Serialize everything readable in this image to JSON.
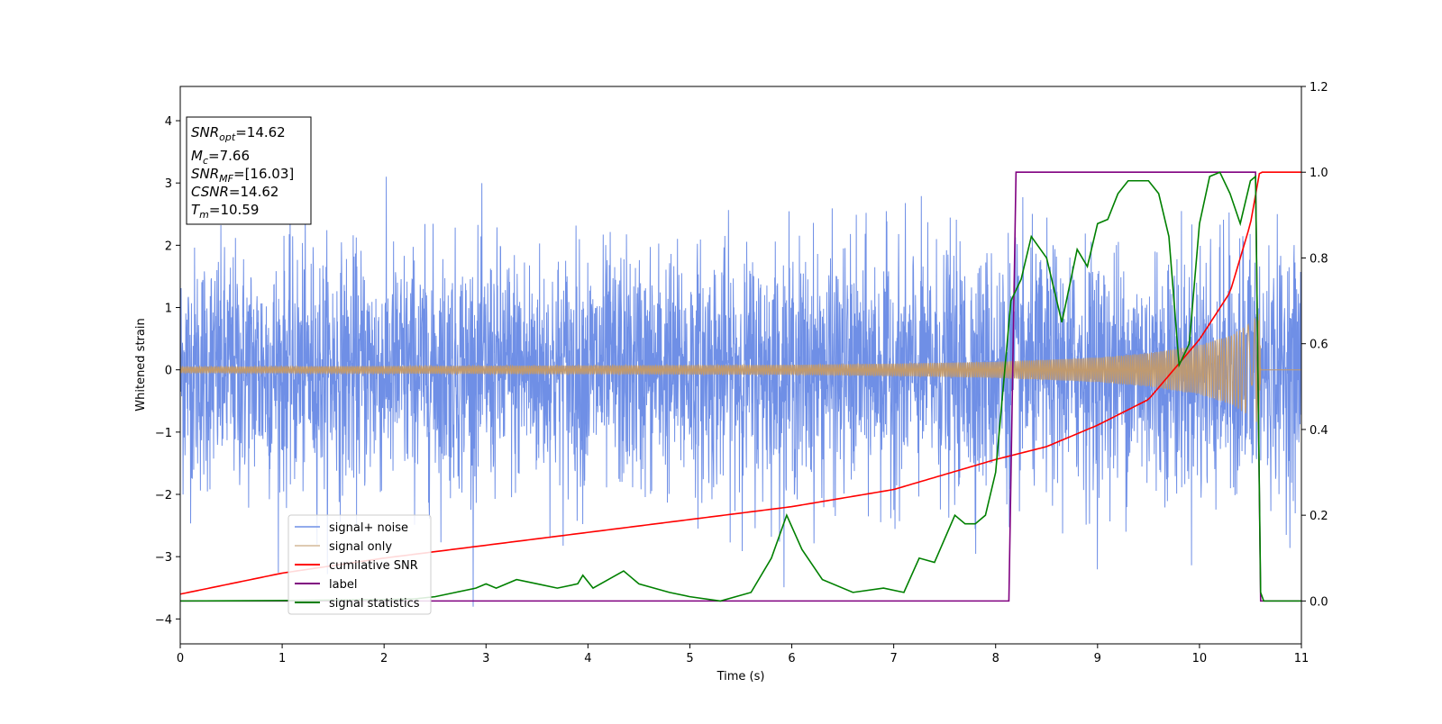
{
  "chart_data": {
    "type": "line",
    "xlabel": "Time (s)",
    "ylabel": "Whitened strain",
    "xlim": [
      0,
      11
    ],
    "ylim": [
      -4.4,
      4.55
    ],
    "y2lim": [
      -0.1,
      1.2
    ],
    "x_ticks": [
      "0",
      "1",
      "2",
      "3",
      "4",
      "5",
      "6",
      "7",
      "8",
      "9",
      "10",
      "11"
    ],
    "y_ticks": [
      "4",
      "3",
      "2",
      "1",
      "0",
      "−1",
      "−2",
      "−3",
      "−4"
    ],
    "y2_ticks": [
      "1.2",
      "1.0",
      "0.8",
      "0.6",
      "0.4",
      "0.2",
      "0.0"
    ],
    "grid": false,
    "legend": {
      "position": "lower-left",
      "entries": [
        "signal+ noise",
        "signal only",
        "cumilative SNR",
        "label",
        "signal statistics"
      ]
    },
    "annotation_box": [
      {
        "sym": "SNR",
        "sub": "opt",
        "val": "=14.62"
      },
      {
        "sym": "M",
        "sub": "c",
        "val": "=7.66"
      },
      {
        "sym": "SNR",
        "sub": "MF",
        "val": "=[16.03]"
      },
      {
        "sym": "CSNR",
        "sub": "",
        "val": "=14.62"
      },
      {
        "sym": "T",
        "sub": "m",
        "val": "=10.59"
      }
    ],
    "series": [
      {
        "name": "signal+ noise",
        "axis": "left",
        "color": "#6f8fe6",
        "description_stats": {
          "mean": 0,
          "std": 1.0,
          "min": -3.94,
          "max": 4.18
        }
      },
      {
        "name": "signal only",
        "axis": "left",
        "color": "#c29a6c",
        "envelope": {
          "x": [
            0,
            2,
            4,
            6,
            7,
            8,
            9,
            9.5,
            10,
            10.3,
            10.5,
            10.59,
            10.6,
            11
          ],
          "amp": [
            0.05,
            0.06,
            0.07,
            0.08,
            0.1,
            0.13,
            0.2,
            0.27,
            0.4,
            0.55,
            0.75,
            0.92,
            0.0,
            0.0
          ]
        }
      },
      {
        "name": "cumilative SNR",
        "axis": "right",
        "color": "#ff0000",
        "x": [
          0,
          1,
          2,
          3,
          4,
          5,
          6,
          7,
          8,
          8.5,
          9,
          9.5,
          10,
          10.3,
          10.5,
          10.59,
          10.6,
          11
        ],
        "values": [
          0.016,
          0.065,
          0.1,
          0.13,
          0.16,
          0.19,
          0.22,
          0.26,
          0.33,
          0.36,
          0.41,
          0.47,
          0.61,
          0.72,
          0.88,
          1.0,
          1.0,
          1.0
        ]
      },
      {
        "name": "label",
        "axis": "right",
        "color": "#800080",
        "x": [
          0,
          8.13,
          8.2,
          10.55,
          10.6,
          11
        ],
        "values": [
          0,
          0,
          1,
          1,
          0,
          0
        ]
      },
      {
        "name": "signal statistics",
        "axis": "right",
        "color": "#008000",
        "x": [
          0,
          1,
          2,
          2.3,
          2.5,
          2.7,
          2.9,
          3.0,
          3.1,
          3.3,
          3.5,
          3.7,
          3.9,
          3.95,
          4.05,
          4.2,
          4.35,
          4.4,
          4.5,
          4.8,
          5.0,
          5.3,
          5.6,
          5.8,
          5.95,
          6.1,
          6.3,
          6.6,
          6.9,
          7.1,
          7.25,
          7.4,
          7.6,
          7.7,
          7.8,
          7.9,
          8.0,
          8.15,
          8.25,
          8.35,
          8.5,
          8.65,
          8.8,
          8.9,
          9.0,
          9.1,
          9.2,
          9.3,
          9.5,
          9.6,
          9.7,
          9.8,
          9.9,
          10.0,
          10.1,
          10.2,
          10.3,
          10.4,
          10.5,
          10.55,
          10.6,
          10.63,
          11
        ],
        "values": [
          0.0,
          0.001,
          0.003,
          0.005,
          0.01,
          0.02,
          0.03,
          0.04,
          0.03,
          0.05,
          0.04,
          0.03,
          0.04,
          0.06,
          0.03,
          0.05,
          0.07,
          0.06,
          0.04,
          0.02,
          0.01,
          0.0,
          0.02,
          0.1,
          0.2,
          0.12,
          0.05,
          0.02,
          0.03,
          0.02,
          0.1,
          0.09,
          0.2,
          0.18,
          0.18,
          0.2,
          0.3,
          0.7,
          0.75,
          0.85,
          0.8,
          0.65,
          0.82,
          0.78,
          0.88,
          0.89,
          0.95,
          0.98,
          0.98,
          0.95,
          0.85,
          0.55,
          0.6,
          0.88,
          0.99,
          1.0,
          0.95,
          0.88,
          0.98,
          0.99,
          0.02,
          0.0,
          0.0
        ]
      }
    ]
  }
}
